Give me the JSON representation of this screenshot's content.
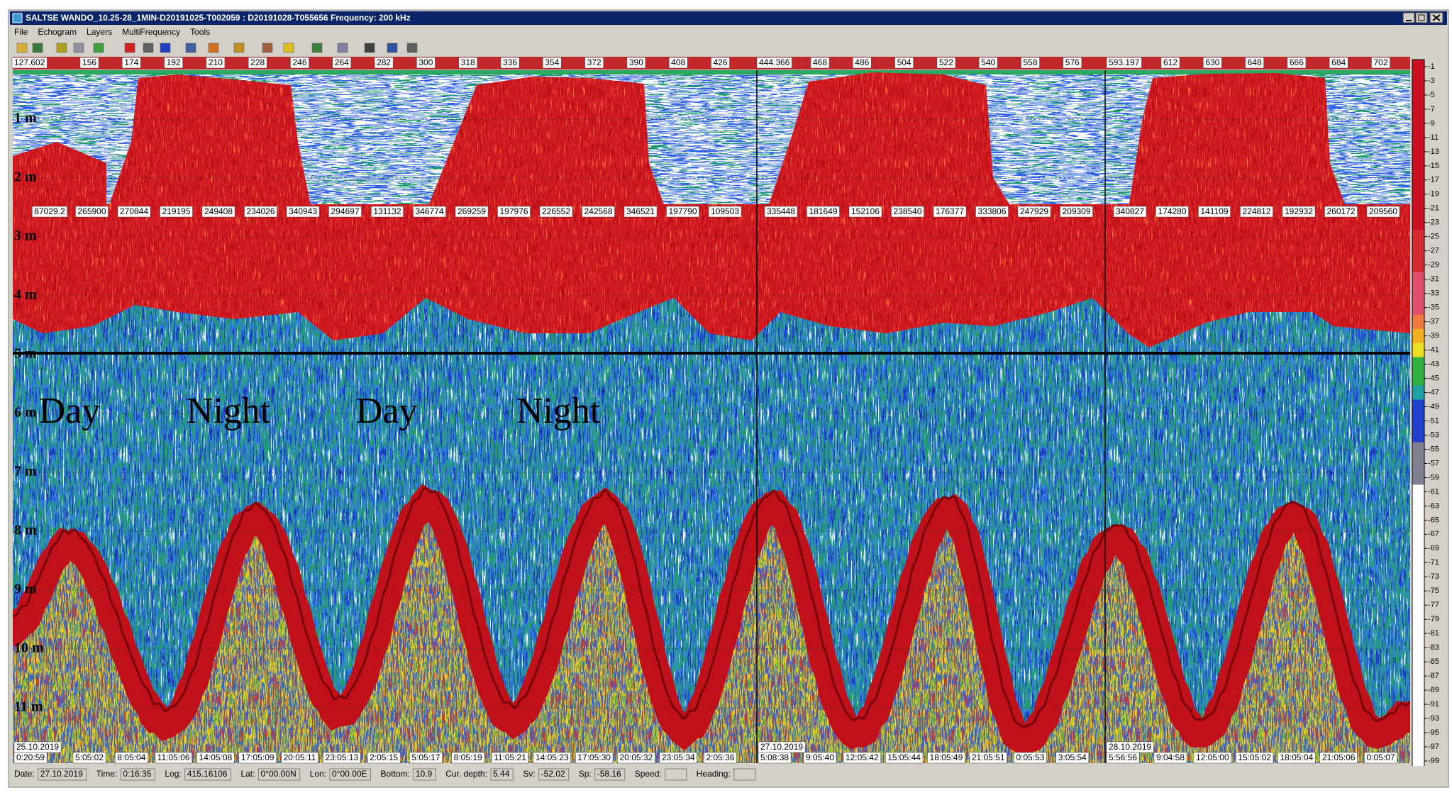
{
  "window": {
    "title": "SALTSE  WANDO_10.25-28_1MIN-D20191025-T002059 : D20191028-T055656  Frequency: 200 kHz",
    "menu": [
      "File",
      "Echogram",
      "Layers",
      "MultiFrequency",
      "Tools"
    ]
  },
  "echogram": {
    "ping_ruler": [
      "127.602",
      "156",
      "174",
      "192",
      "210",
      "228",
      "246",
      "264",
      "282",
      "300",
      "318",
      "336",
      "354",
      "372",
      "390",
      "408",
      "426",
      "444.366",
      "468",
      "486",
      "504",
      "522",
      "540",
      "558",
      "576",
      "593.197",
      "612",
      "630",
      "648",
      "666",
      "684",
      "702"
    ],
    "depth_labels": [
      "1 m",
      "2 m",
      "3 m",
      "4 m",
      "5 m",
      "6 m",
      "7 m",
      "8 m",
      "9 m",
      "10 m",
      "11 m"
    ],
    "region_values": [
      "87029.2",
      "265900",
      "270844",
      "219195",
      "249408",
      "234026",
      "340943",
      "294697",
      "131132",
      "346774",
      "269259",
      "197976",
      "226552",
      "242568",
      "346521",
      "197790",
      "109503",
      "335448",
      "181649",
      "152106",
      "238540",
      "176377",
      "333806",
      "247929",
      "209309",
      "340827",
      "174280",
      "141109",
      "224812",
      "192932",
      "260172",
      "209560"
    ],
    "annotations": [
      "Day",
      "Night",
      "Day",
      "Night"
    ],
    "dates": [
      "25.10.2019",
      "27.10.2019",
      "28.10.2019"
    ],
    "times": [
      "0:20:59",
      "5:05:02",
      "8:05:04",
      "11:05:06",
      "14:05:08",
      "17:05:09",
      "20:05:11",
      "23:05:13",
      "2:05:15",
      "5:05:17",
      "8:05:19",
      "11:05:21",
      "14:05:23",
      "17:05:30",
      "20:05:32",
      "23:05:34",
      "2:05:36",
      "5:08:38",
      "9:05:40",
      "12:05:42",
      "15:05:44",
      "18:05:49",
      "21:05:51",
      "0:05:53",
      "3:05:54",
      "5:56:56",
      "9:04:58",
      "12:05:00",
      "15:05:02",
      "18:05:04",
      "21:05:06",
      "0:05:07"
    ]
  },
  "color_scale": [
    "-1",
    "-3",
    "-5",
    "-7",
    "-9",
    "-11",
    "-13",
    "-15",
    "-17",
    "-19",
    "-21",
    "-23",
    "-25",
    "-27",
    "-29",
    "-31",
    "-33",
    "-35",
    "-37",
    "-39",
    "-41",
    "-43",
    "-45",
    "-47",
    "-49",
    "-51",
    "-53",
    "-55",
    "-57",
    "-59",
    "-61",
    "-63",
    "-65",
    "-67",
    "-69",
    "-71",
    "-73",
    "-75",
    "-77",
    "-79",
    "-81",
    "-83",
    "-85",
    "-87",
    "-89",
    "-91",
    "-93",
    "-95",
    "-97",
    "-99"
  ],
  "status_bar": [
    {
      "label": "Date:",
      "value": "27.10.2019"
    },
    {
      "label": "Time:",
      "value": "0:16:35"
    },
    {
      "label": "Log:",
      "value": "415.16106"
    },
    {
      "label": "Lat:",
      "value": "0°00.00N"
    },
    {
      "label": "Lon:",
      "value": "0°00.00E"
    },
    {
      "label": "Bottom:",
      "value": "10.9"
    },
    {
      "label": "Cur. depth:",
      "value": "5.44"
    },
    {
      "label": "Sv:",
      "value": "-52.02"
    },
    {
      "label": "Sp:",
      "value": "-58.16"
    },
    {
      "label": "Speed:"
    },
    {
      "label": "Heading:"
    }
  ]
}
